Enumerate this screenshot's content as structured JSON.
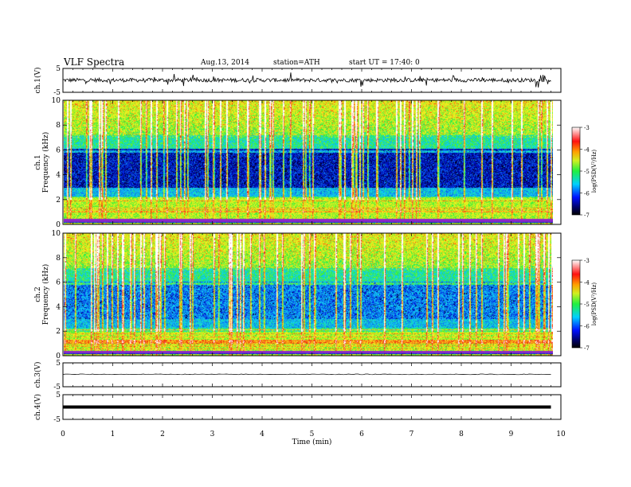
{
  "header": {
    "title": "VLF  Spectra",
    "date": "Aug.13, 2014",
    "station": "station=ATH",
    "start": "start  UT =   17:40: 0"
  },
  "colors": {
    "black": "#000000",
    "blue": "#0018e0",
    "cyan": "#10d8f0",
    "green": "#28f040",
    "yellow": "#f8f020",
    "red": "#f02010",
    "purple": "#a020c0"
  },
  "chart_data": [
    {
      "type": "line",
      "panel": "ch1",
      "ylabel": "ch.1(V)",
      "yticks": [
        "5",
        "-5"
      ],
      "ylim": [
        -5,
        5
      ],
      "xlim": [
        0,
        10
      ],
      "trace": "noise",
      "x": [
        0.0,
        1.0,
        2.0,
        3.0,
        4.0,
        5.0,
        6.0,
        7.0,
        8.0,
        9.0,
        9.8
      ],
      "y": [
        0.2,
        0.0,
        -0.3,
        0.1,
        0.0,
        0.2,
        -0.1,
        0.0,
        0.1,
        0.0,
        0.0
      ]
    },
    {
      "type": "heatmap",
      "panel": "ch1-spectrogram",
      "ylabel": "ch.1",
      "ylabel2": "Frequency  (kHz)",
      "yticks": [
        "10",
        "8",
        "6",
        "4",
        "2",
        "0"
      ],
      "ylim": [
        0,
        10
      ],
      "xlim": [
        0,
        10
      ],
      "colorbar": {
        "label": "log(PSD(V²/Hz)",
        "ticks": [
          "-3",
          "-4",
          "-5",
          "-6",
          "-7"
        ],
        "range": [
          -7,
          -3
        ]
      }
    },
    {
      "type": "heatmap",
      "panel": "ch2-spectrogram",
      "ylabel": "ch.2",
      "ylabel2": "Frequency  (kHz)",
      "yticks": [
        "10",
        "8",
        "6",
        "4",
        "2",
        "0"
      ],
      "ylim": [
        0,
        10
      ],
      "xlim": [
        0,
        10
      ],
      "colorbar": {
        "label": "log(PSD(V²/Hz)",
        "ticks": [
          "-3",
          "-4",
          "-5",
          "-6",
          "-7"
        ],
        "range": [
          -7,
          -3
        ]
      }
    },
    {
      "type": "line",
      "panel": "ch3",
      "ylabel": "ch.3(V)",
      "yticks": [
        "5",
        "-5"
      ],
      "ylim": [
        -5,
        5
      ],
      "xlim": [
        0,
        10
      ],
      "trace": "flat",
      "x": [
        0.0,
        9.8
      ],
      "y": [
        0.2,
        0.2
      ]
    },
    {
      "type": "line",
      "panel": "ch4",
      "ylabel": "ch.4(V)",
      "yticks": [
        "5",
        "-5"
      ],
      "ylim": [
        -5,
        5
      ],
      "xlim": [
        0,
        10
      ],
      "trace": "thick",
      "x": [
        0.0,
        9.8
      ],
      "y": [
        0.0,
        0.0
      ]
    }
  ],
  "xaxis": {
    "label": "Time  (min)",
    "ticks": [
      "0",
      "1",
      "2",
      "3",
      "4",
      "5",
      "6",
      "7",
      "8",
      "9",
      "10"
    ]
  }
}
